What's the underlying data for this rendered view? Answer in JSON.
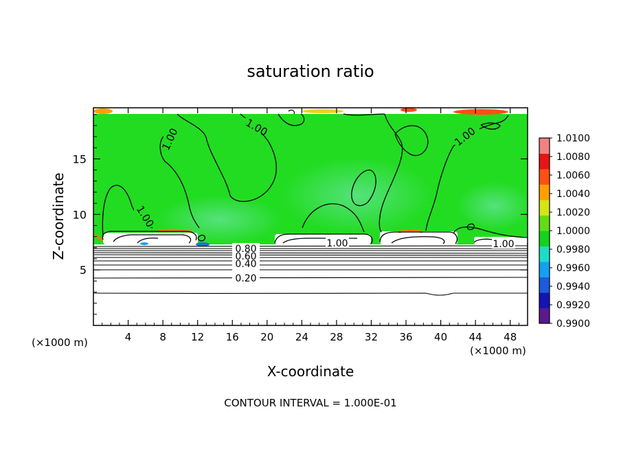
{
  "chart_data": {
    "type": "heatmap",
    "title": "saturation ratio",
    "xlabel": "X-coordinate",
    "ylabel": "Z-coordinate",
    "x_unit": "(×1000 m)",
    "z_unit": "(×1000 m)",
    "xlim": [
      0,
      50
    ],
    "ylim": [
      0,
      19.6
    ],
    "x_ticks": [
      "4",
      "8",
      "12",
      "16",
      "20",
      "24",
      "28",
      "32",
      "36",
      "40",
      "44",
      "48"
    ],
    "y_ticks": [
      "5",
      "10",
      "15"
    ],
    "colorbar": {
      "min": 0.99,
      "max": 1.01,
      "labels": [
        "1.0100",
        "1.0080",
        "1.0060",
        "1.0040",
        "1.0020",
        "1.0000",
        "0.9980",
        "0.9960",
        "0.9940",
        "0.9920",
        "0.9900"
      ],
      "colors": [
        "#5a1a8c",
        "#1414b4",
        "#1e5adc",
        "#14a0f0",
        "#1edcc8",
        "#14d21e",
        "#64dc14",
        "#d2e614",
        "#ffa000",
        "#ff5014",
        "#e61414",
        "#f08282"
      ]
    },
    "contour_labels": [
      "1.00",
      "1.00",
      "1.00",
      "1.00",
      "1.00",
      "1.00",
      "1.00",
      "0.80",
      "0.60",
      "0.40",
      "0.20"
    ],
    "contour_interval": "CONTOUR INTERVAL = 1.000E-01"
  }
}
